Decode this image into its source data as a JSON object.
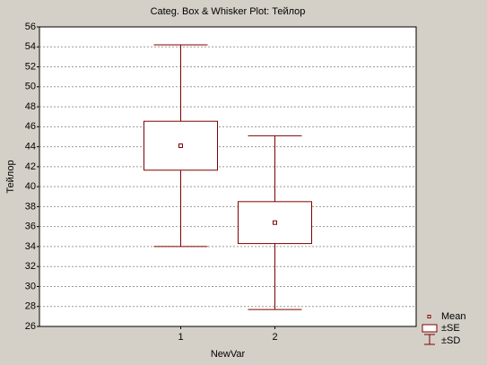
{
  "chart_data": {
    "type": "box",
    "title": "Categ. Box & Whisker Plot:   Тейлор",
    "x_label": "NewVar",
    "y_label": "Тейлор",
    "categories": [
      "1",
      "2"
    ],
    "means": [
      44.1,
      36.4
    ],
    "se": [
      2.45,
      2.1
    ],
    "sd": [
      10.1,
      8.7
    ],
    "color": "#800000",
    "ylim": [
      26,
      56
    ],
    "yticks": [
      26,
      28,
      30,
      32,
      34,
      36,
      38,
      40,
      42,
      44,
      46,
      48,
      50,
      52,
      54,
      56
    ],
    "grid": true,
    "legend": [
      "Mean",
      "±SE",
      "±SD"
    ],
    "legend_position": "bottom-right"
  }
}
